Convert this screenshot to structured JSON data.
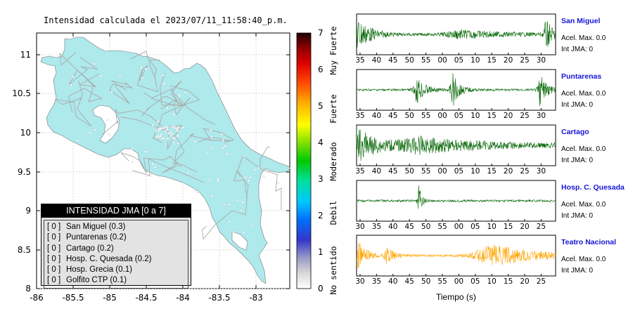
{
  "map": {
    "title": "Intensidad calculada el 2023/07/11_11:58:40_p.m.",
    "x_ticks": [
      "-86",
      "-85.5",
      "-85",
      "-84.5",
      "-84",
      "-83.5",
      "-83"
    ],
    "y_ticks": [
      "11",
      "10.5",
      "10",
      "9.5",
      "9",
      "8.5",
      "8"
    ],
    "land_color": "#aee9ec",
    "road_color": "#a9a9a9"
  },
  "colorbar": {
    "ticks": [
      "0",
      "1",
      "2",
      "3",
      "4",
      "5",
      "6",
      "7"
    ],
    "labels": [
      "No sentido",
      "Debil",
      "Moderado",
      "Fuerte",
      "Muy Fuerte"
    ]
  },
  "legend": {
    "title": "INTENSIDAD JMA [0 a 7]",
    "items": [
      {
        "code": "[ 0 ]",
        "label": "San Miguel (0.3)"
      },
      {
        "code": "[ 0 ]",
        "label": "Puntarenas (0.2)"
      },
      {
        "code": "[ 0 ]",
        "label": "Cartago (0.2)"
      },
      {
        "code": "[ 0 ]",
        "label": "Hosp. C. Quesada (0.2)"
      },
      {
        "code": "[ 0 ]",
        "label": "Hosp. Grecia (0.1)"
      },
      {
        "code": "[ 0 ]",
        "label": "Golfito CTP (0.1)"
      }
    ]
  },
  "waveforms": {
    "xlabel": "Tiempo (s)",
    "stations": [
      {
        "name": "San Miguel",
        "acel": "Acel. Max. 0.0",
        "int": "Int JMA: 0",
        "color": "#006400",
        "ticks": [
          "35",
          "40",
          "45",
          "50",
          "55",
          "00",
          "05",
          "10",
          "15",
          "20",
          "25",
          "30"
        ]
      },
      {
        "name": "Puntarenas",
        "acel": "Acel. Max. 0.0",
        "int": "Int JMA: 0",
        "color": "#006400",
        "ticks": [
          "35",
          "40",
          "45",
          "50",
          "55",
          "00",
          "05",
          "10",
          "15",
          "20",
          "25",
          "30"
        ]
      },
      {
        "name": "Cartago",
        "acel": "Acel. Max. 0.0",
        "int": "Int JMA: 0",
        "color": "#006400",
        "ticks": [
          "35",
          "40",
          "45",
          "50",
          "55",
          "00",
          "05",
          "10",
          "15",
          "20",
          "25",
          "30"
        ]
      },
      {
        "name": "Hosp. C. Quesada",
        "acel": "Acel. Max. 0.0",
        "int": "Int JMA: 0",
        "color": "#006400",
        "ticks": [
          "30",
          "35",
          "40",
          "45",
          "50",
          "55",
          "00",
          "05",
          "10",
          "15",
          "20",
          "25"
        ]
      },
      {
        "name": "Teatro Nacional",
        "acel": "Acel. Max. 0.0",
        "int": "Int JMA: 0",
        "color": "#ffa500",
        "ticks": [
          "30",
          "35",
          "40",
          "45",
          "50",
          "55",
          "00",
          "05",
          "10",
          "15",
          "20",
          "25"
        ]
      }
    ]
  }
}
